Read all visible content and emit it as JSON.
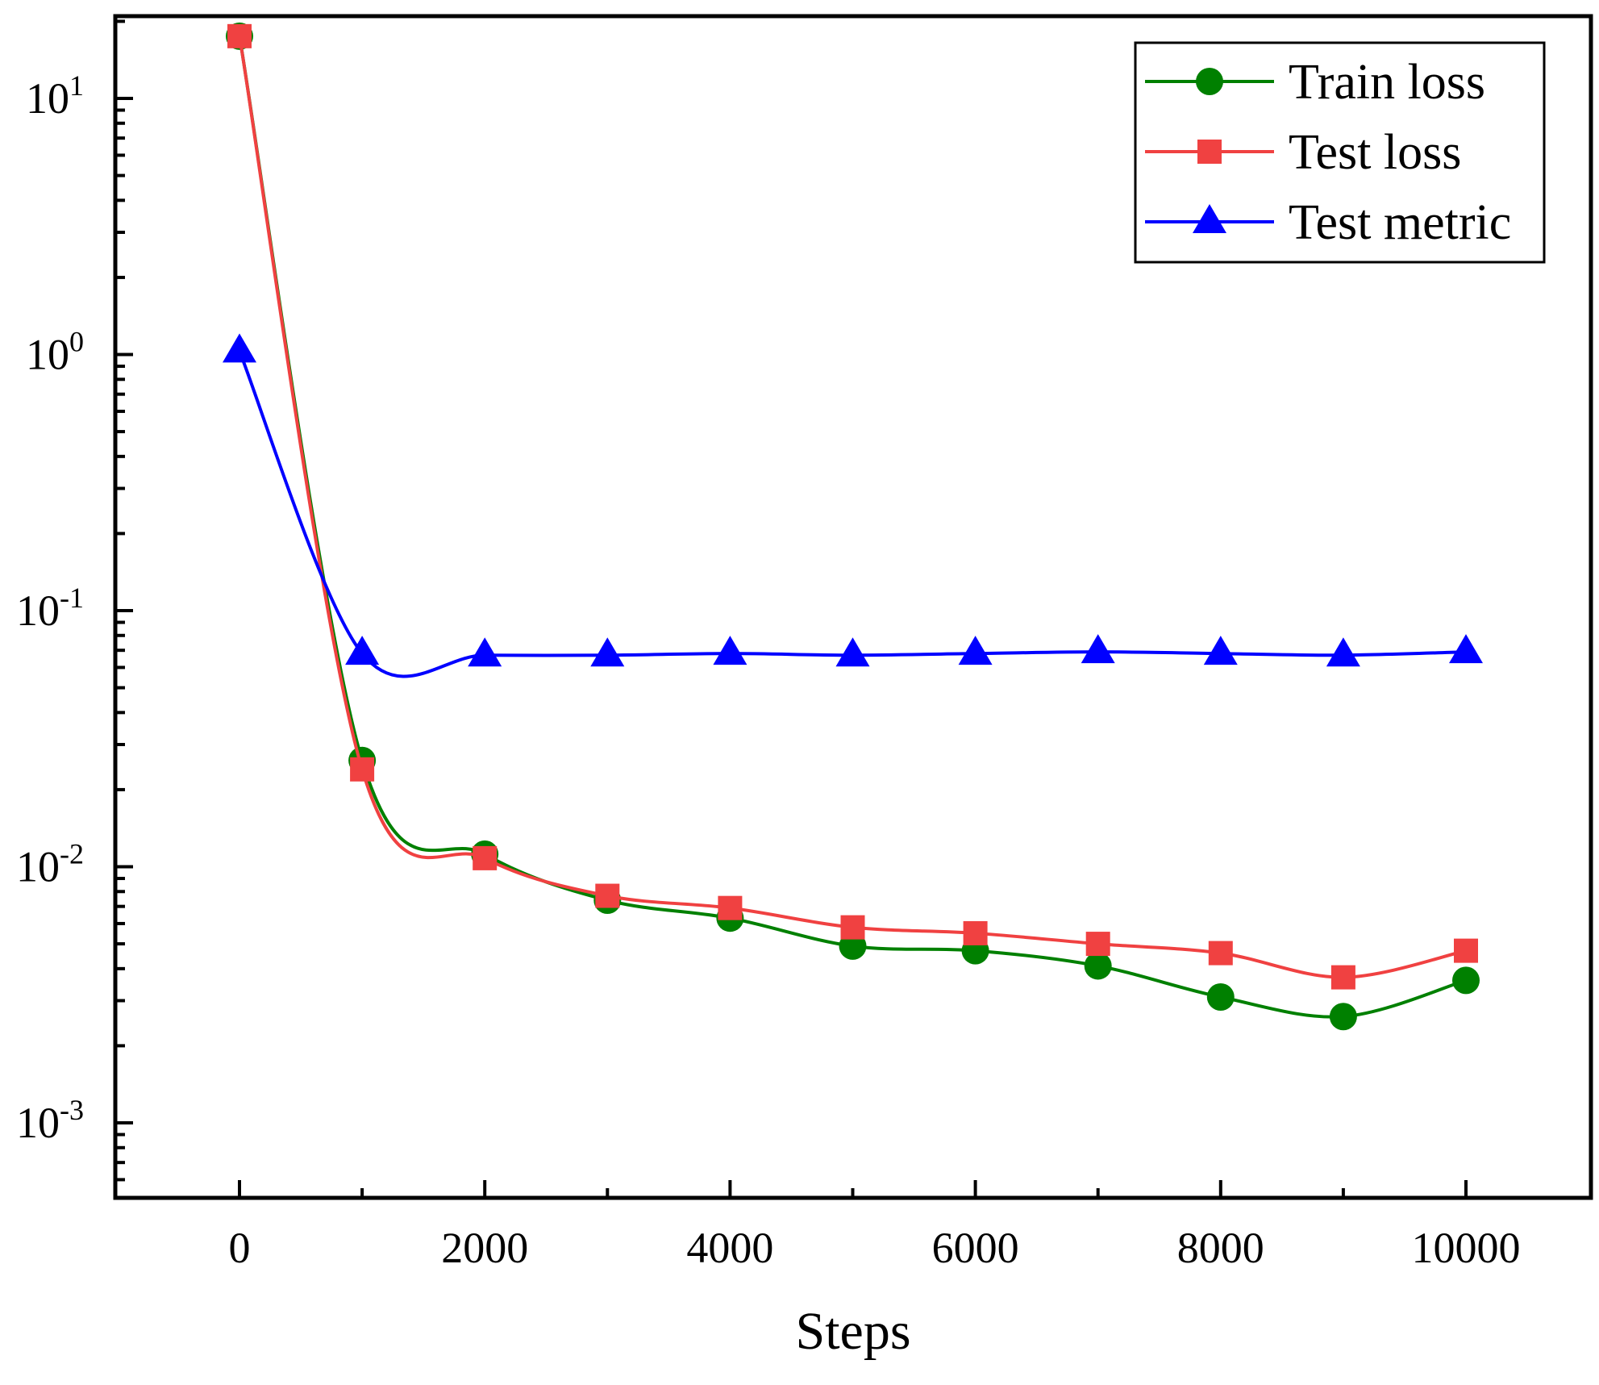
{
  "chart_data": {
    "type": "line",
    "title": "",
    "xlabel": "Steps",
    "ylabel": "",
    "yscale": "log",
    "xlim": [
      -1000,
      11000
    ],
    "ylim": [
      0.0005,
      20
    ],
    "grid": false,
    "legend_position": "top-right",
    "x": [
      0,
      1000,
      2000,
      3000,
      4000,
      5000,
      6000,
      7000,
      8000,
      9000,
      10000
    ],
    "xticks": [
      {
        "value": 0,
        "label": "0"
      },
      {
        "value": 2000,
        "label": "2000"
      },
      {
        "value": 4000,
        "label": "4000"
      },
      {
        "value": 6000,
        "label": "6000"
      },
      {
        "value": 8000,
        "label": "8000"
      },
      {
        "value": 10000,
        "label": "10000"
      }
    ],
    "yticks": [
      {
        "value": 10,
        "base": "10",
        "exp": "1"
      },
      {
        "value": 1,
        "base": "10",
        "exp": "0"
      },
      {
        "value": 0.1,
        "base": "10",
        "exp": "-1"
      },
      {
        "value": 0.01,
        "base": "10",
        "exp": "-2"
      },
      {
        "value": 0.001,
        "base": "10",
        "exp": "-3"
      }
    ],
    "series": [
      {
        "name": "Train loss",
        "color": "#008000",
        "marker": "circle",
        "values": [
          17.5,
          0.026,
          0.0112,
          0.0074,
          0.0063,
          0.0049,
          0.0047,
          0.0041,
          0.0031,
          0.0026,
          0.0036
        ]
      },
      {
        "name": "Test loss",
        "color": "#f04141",
        "marker": "square",
        "values": [
          17.5,
          0.024,
          0.0108,
          0.0077,
          0.0069,
          0.0058,
          0.0055,
          0.005,
          0.0046,
          0.0037,
          0.0047
        ]
      },
      {
        "name": "Test metric",
        "color": "#0000ff",
        "marker": "triangle",
        "values": [
          1.03,
          0.068,
          0.067,
          0.067,
          0.068,
          0.067,
          0.068,
          0.069,
          0.068,
          0.067,
          0.069
        ]
      }
    ]
  }
}
